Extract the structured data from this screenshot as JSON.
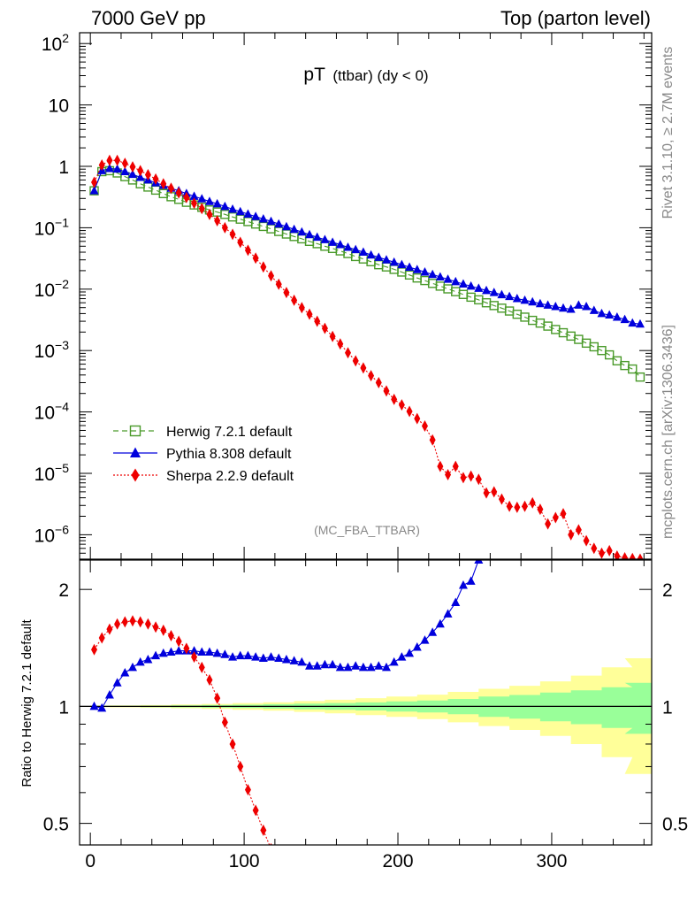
{
  "header": {
    "left": "7000 GeV pp",
    "right": "Top (parton level)"
  },
  "side_labels": {
    "rivet": "Rivet 3.1.10, ≥ 2.7M events",
    "mcplots": "mcplots.cern.ch [arXiv:1306.3436]"
  },
  "chart_data": [
    {
      "type": "line",
      "title_main": "pT",
      "title_sub": "(ttbar) (dy < 0)",
      "watermark": "(MC_FBA_TTBAR)",
      "yscale": "log",
      "ylim": [
        4e-07,
        150
      ],
      "xlim": [
        -7,
        365
      ],
      "y_ticks": [
        {
          "base": "10",
          "exp": "2"
        },
        {
          "base": "10",
          "exp": ""
        },
        {
          "base": "1",
          "exp": ""
        },
        {
          "base": "10",
          "exp": "−1"
        },
        {
          "base": "10",
          "exp": "−2"
        },
        {
          "base": "10",
          "exp": "−3"
        },
        {
          "base": "10",
          "exp": "−4"
        },
        {
          "base": "10",
          "exp": "−5"
        },
        {
          "base": "10",
          "exp": "−6"
        }
      ],
      "legend_position": "bottom-left",
      "series": [
        {
          "name": "Herwig 7.2.1 default",
          "color": "#4a9a2a",
          "marker": "open-square",
          "line": "dashed",
          "x": [
            2.5,
            7.5,
            12.5,
            17.5,
            22.5,
            27.5,
            32.5,
            37.5,
            42.5,
            47.5,
            52.5,
            57.5,
            62.5,
            67.5,
            72.5,
            77.5,
            82.5,
            87.5,
            92.5,
            97.5,
            102.5,
            107.5,
            112.5,
            117.5,
            122.5,
            127.5,
            132.5,
            137.5,
            142.5,
            147.5,
            152.5,
            157.5,
            162.5,
            167.5,
            172.5,
            177.5,
            182.5,
            187.5,
            192.5,
            197.5,
            202.5,
            207.5,
            212.5,
            217.5,
            222.5,
            227.5,
            232.5,
            237.5,
            242.5,
            247.5,
            252.5,
            257.5,
            262.5,
            267.5,
            272.5,
            277.5,
            282.5,
            287.5,
            292.5,
            297.5,
            302.5,
            307.5,
            312.5,
            317.5,
            322.5,
            327.5,
            332.5,
            337.5,
            342.5,
            347.5,
            352.5,
            357.5
          ],
          "y": [
            0.4,
            0.82,
            0.85,
            0.78,
            0.68,
            0.6,
            0.52,
            0.46,
            0.41,
            0.36,
            0.32,
            0.29,
            0.26,
            0.235,
            0.215,
            0.195,
            0.18,
            0.165,
            0.15,
            0.138,
            0.126,
            0.115,
            0.105,
            0.096,
            0.087,
            0.079,
            0.072,
            0.066,
            0.06,
            0.055,
            0.05,
            0.046,
            0.042,
            0.038,
            0.034,
            0.031,
            0.028,
            0.025,
            0.023,
            0.021,
            0.019,
            0.017,
            0.0152,
            0.0138,
            0.0124,
            0.0112,
            0.0101,
            0.0091,
            0.0082,
            0.0074,
            0.0067,
            0.006,
            0.0054,
            0.0049,
            0.0044,
            0.0039,
            0.0035,
            0.0031,
            0.0028,
            0.0025,
            0.0022,
            0.00195,
            0.00172,
            0.00152,
            0.00132,
            0.00115,
            0.001,
            0.00085,
            0.00068,
            0.00057,
            0.0005,
            0.00037
          ]
        },
        {
          "name": "Pythia 8.308 default",
          "color": "#0000dd",
          "marker": "filled-triangle",
          "line": "solid",
          "x": [
            2.5,
            7.5,
            12.5,
            17.5,
            22.5,
            27.5,
            32.5,
            37.5,
            42.5,
            47.5,
            52.5,
            57.5,
            62.5,
            67.5,
            72.5,
            77.5,
            82.5,
            87.5,
            92.5,
            97.5,
            102.5,
            107.5,
            112.5,
            117.5,
            122.5,
            127.5,
            132.5,
            137.5,
            142.5,
            147.5,
            152.5,
            157.5,
            162.5,
            167.5,
            172.5,
            177.5,
            182.5,
            187.5,
            192.5,
            197.5,
            202.5,
            207.5,
            212.5,
            217.5,
            222.5,
            227.5,
            232.5,
            237.5,
            242.5,
            247.5,
            252.5,
            257.5,
            262.5,
            267.5,
            272.5,
            277.5,
            282.5,
            287.5,
            292.5,
            297.5,
            302.5,
            307.5,
            312.5,
            317.5,
            322.5,
            327.5,
            332.5,
            337.5,
            342.5,
            347.5,
            352.5,
            357.5
          ],
          "y": [
            0.4,
            0.85,
            0.92,
            0.9,
            0.82,
            0.74,
            0.66,
            0.6,
            0.54,
            0.49,
            0.44,
            0.4,
            0.36,
            0.325,
            0.295,
            0.268,
            0.245,
            0.222,
            0.2,
            0.183,
            0.167,
            0.152,
            0.139,
            0.127,
            0.115,
            0.104,
            0.094,
            0.085,
            0.077,
            0.07,
            0.064,
            0.058,
            0.053,
            0.048,
            0.044,
            0.04,
            0.036,
            0.033,
            0.03,
            0.0275,
            0.025,
            0.0228,
            0.0208,
            0.019,
            0.0173,
            0.0158,
            0.0145,
            0.0132,
            0.0121,
            0.0112,
            0.0103,
            0.0095,
            0.0088,
            0.0081,
            0.0076,
            0.007,
            0.0066,
            0.0062,
            0.0058,
            0.0055,
            0.0052,
            0.0049,
            0.0047,
            0.0055,
            0.0052,
            0.0045,
            0.004,
            0.0038,
            0.0035,
            0.0032,
            0.0028,
            0.0027
          ]
        },
        {
          "name": "Sherpa 2.2.9 default",
          "color": "#ee0000",
          "marker": "filled-diamond",
          "line": "dotted",
          "x": [
            2.5,
            7.5,
            12.5,
            17.5,
            22.5,
            27.5,
            32.5,
            37.5,
            42.5,
            47.5,
            52.5,
            57.5,
            62.5,
            67.5,
            72.5,
            77.5,
            82.5,
            87.5,
            92.5,
            97.5,
            102.5,
            107.5,
            112.5,
            117.5,
            122.5,
            127.5,
            132.5,
            137.5,
            142.5,
            147.5,
            152.5,
            157.5,
            162.5,
            167.5,
            172.5,
            177.5,
            182.5,
            187.5,
            192.5,
            197.5,
            202.5,
            207.5,
            212.5,
            217.5,
            222.5,
            227.5,
            232.5,
            237.5,
            242.5,
            247.5,
            252.5,
            257.5,
            262.5,
            267.5,
            272.5,
            277.5,
            282.5,
            287.5,
            292.5,
            297.5,
            302.5,
            307.5,
            312.5,
            317.5,
            322.5,
            327.5,
            332.5,
            337.5,
            342.5,
            347.5,
            352.5,
            357.5
          ],
          "y": [
            0.55,
            1.05,
            1.25,
            1.25,
            1.12,
            0.98,
            0.85,
            0.73,
            0.62,
            0.52,
            0.44,
            0.37,
            0.31,
            0.25,
            0.205,
            0.165,
            0.13,
            0.1,
            0.078,
            0.058,
            0.043,
            0.032,
            0.023,
            0.0165,
            0.012,
            0.0088,
            0.0066,
            0.005,
            0.0039,
            0.003,
            0.0023,
            0.0017,
            0.00128,
            0.00092,
            0.00068,
            0.00052,
            0.00039,
            0.0003,
            0.00022,
            0.00016,
            0.00013,
            0.000102,
            7.8e-05,
            5.9e-05,
            3.5e-05,
            1.3e-05,
            9.5e-06,
            1.3e-05,
            8.5e-06,
            9e-06,
            8e-06,
            4.8e-06,
            5e-06,
            3.8e-06,
            2.9e-06,
            2.8e-06,
            2.9e-06,
            3.3e-06,
            2.6e-06,
            1.5e-06,
            1.9e-06,
            2.2e-06,
            1e-06,
            1.2e-06,
            8e-07,
            6e-07,
            5e-07,
            5.5e-07,
            4.5e-07,
            4.2e-07,
            4.1e-07,
            4e-07
          ]
        }
      ]
    },
    {
      "type": "line",
      "ylabel": "Ratio to Herwig 7.2.1 default",
      "yscale": "log",
      "ylim": [
        0.44,
        2.38
      ],
      "xlim": [
        -7,
        365
      ],
      "x_ticks": [
        "0",
        "100",
        "200",
        "300"
      ],
      "y_ticks": [
        "2",
        "1",
        "0.5"
      ],
      "bands": {
        "x": [
          2.5,
          22.5,
          42.5,
          62.5,
          82.5,
          102.5,
          122.5,
          142.5,
          162.5,
          182.5,
          202.5,
          222.5,
          242.5,
          262.5,
          282.5,
          302.5,
          322.5,
          342.5,
          357.5
        ],
        "inner": [
          0.003,
          0.003,
          0.004,
          0.006,
          0.008,
          0.01,
          0.013,
          0.017,
          0.02,
          0.024,
          0.03,
          0.035,
          0.045,
          0.06,
          0.07,
          0.085,
          0.1,
          0.12,
          0.15
        ],
        "outer": [
          0.005,
          0.006,
          0.008,
          0.011,
          0.015,
          0.02,
          0.025,
          0.032,
          0.04,
          0.05,
          0.06,
          0.072,
          0.09,
          0.11,
          0.13,
          0.16,
          0.2,
          0.26,
          0.33
        ],
        "inner_color": "#99ff99",
        "outer_color": "#ffff99"
      },
      "series": [
        {
          "name": "Pythia 8.308 default",
          "color": "#0000dd",
          "marker": "filled-triangle",
          "line": "solid",
          "x": [
            2.5,
            7.5,
            12.5,
            17.5,
            22.5,
            27.5,
            32.5,
            37.5,
            42.5,
            47.5,
            52.5,
            57.5,
            62.5,
            67.5,
            72.5,
            77.5,
            82.5,
            87.5,
            92.5,
            97.5,
            102.5,
            107.5,
            112.5,
            117.5,
            122.5,
            127.5,
            132.5,
            137.5,
            142.5,
            147.5,
            152.5,
            157.5,
            162.5,
            167.5,
            172.5,
            177.5,
            182.5,
            187.5,
            192.5,
            197.5,
            202.5,
            207.5,
            212.5,
            217.5,
            222.5,
            227.5,
            232.5,
            237.5,
            242.5,
            247.5,
            252.5
          ],
          "y": [
            1.0,
            0.99,
            1.07,
            1.15,
            1.22,
            1.26,
            1.3,
            1.32,
            1.35,
            1.37,
            1.38,
            1.39,
            1.39,
            1.39,
            1.38,
            1.38,
            1.37,
            1.36,
            1.34,
            1.35,
            1.35,
            1.34,
            1.33,
            1.34,
            1.33,
            1.32,
            1.31,
            1.3,
            1.27,
            1.27,
            1.28,
            1.28,
            1.26,
            1.26,
            1.27,
            1.26,
            1.26,
            1.27,
            1.26,
            1.3,
            1.34,
            1.37,
            1.42,
            1.48,
            1.55,
            1.63,
            1.73,
            1.85,
            2.05,
            2.1,
            2.38
          ]
        },
        {
          "name": "Sherpa 2.2.9 default",
          "color": "#ee0000",
          "marker": "filled-diamond",
          "line": "dotted",
          "x": [
            2.5,
            7.5,
            12.5,
            17.5,
            22.5,
            27.5,
            32.5,
            37.5,
            42.5,
            47.5,
            52.5,
            57.5,
            62.5,
            67.5,
            72.5,
            77.5,
            82.5,
            87.5,
            92.5,
            97.5,
            102.5,
            107.5,
            112.5,
            117.5,
            122.5
          ],
          "y": [
            1.4,
            1.5,
            1.58,
            1.63,
            1.65,
            1.66,
            1.65,
            1.63,
            1.6,
            1.57,
            1.52,
            1.47,
            1.41,
            1.34,
            1.26,
            1.17,
            1.05,
            0.91,
            0.8,
            0.7,
            0.61,
            0.54,
            0.48,
            0.43,
            0.39
          ]
        }
      ]
    }
  ]
}
